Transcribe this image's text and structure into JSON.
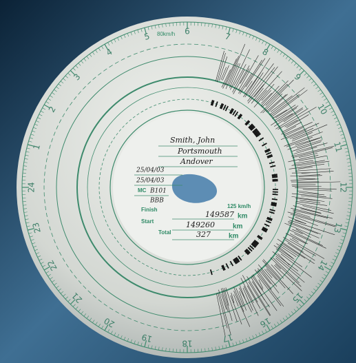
{
  "driver": {
    "name": "Smith, John",
    "start_place": "Portsmouth",
    "end_place": "Andover",
    "start_date": "25/04/03",
    "end_date": "25/04/03",
    "vehicle_label": "MC",
    "vehicle": "B101",
    "vehicle_2": "BBB"
  },
  "odometer": {
    "finish_label": "Finish",
    "finish": "149587",
    "start_label": "Start",
    "start": "149260",
    "total_label": "Total",
    "total": "327",
    "unit": "km"
  },
  "speed_labels": {
    "max": "125 km/h",
    "mid": "80km/h"
  },
  "hours": [
    1,
    2,
    3,
    4,
    5,
    6,
    7,
    8,
    9,
    10,
    11,
    12,
    13,
    14,
    15,
    16,
    17,
    18,
    19,
    20,
    21,
    22,
    23,
    24
  ]
}
